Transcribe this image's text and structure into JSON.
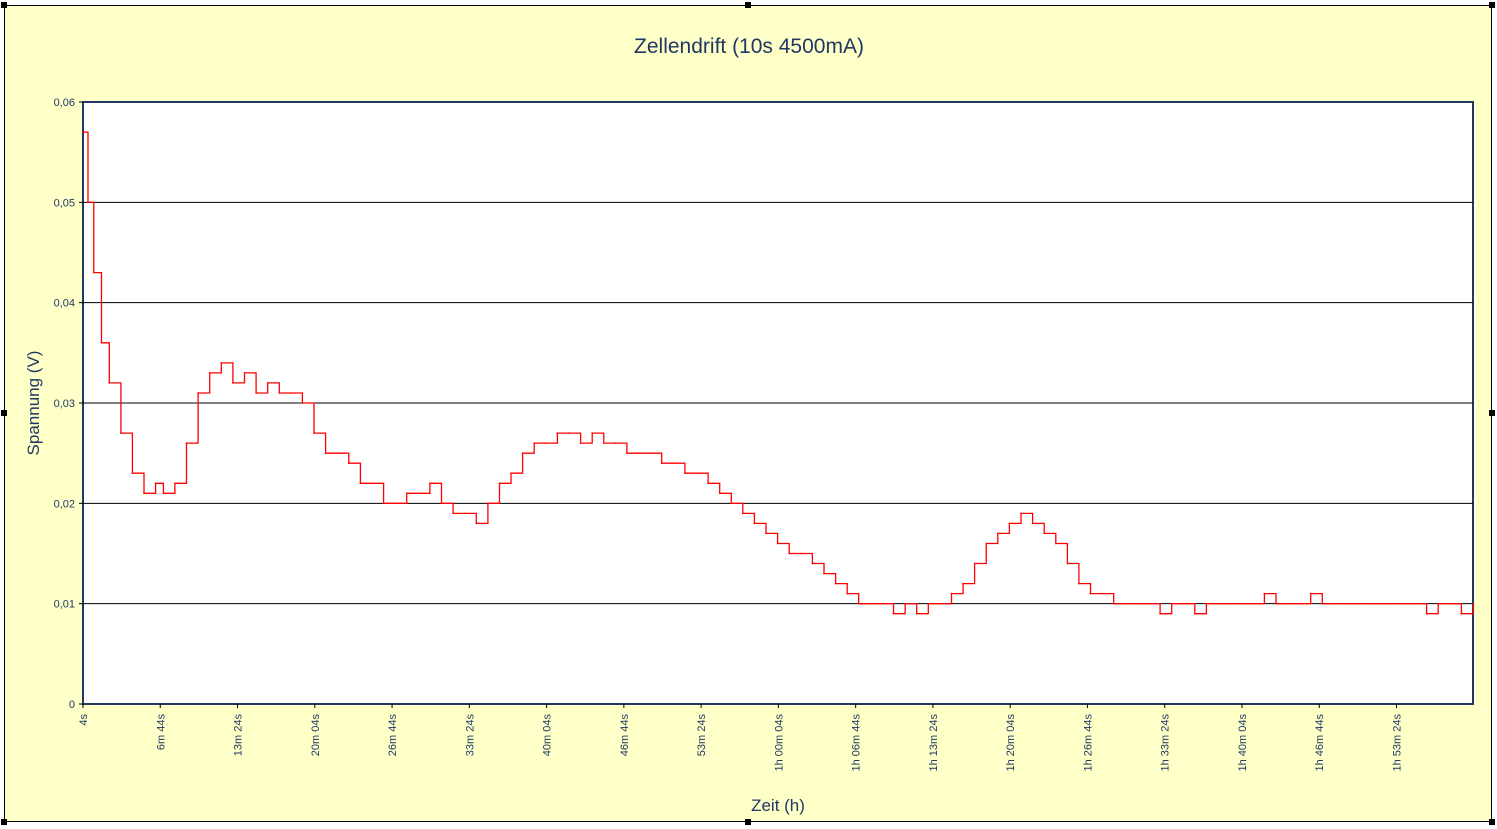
{
  "chart_data": {
    "type": "line",
    "title": "Zellendrift (10s 4500mA)",
    "xlabel": "Zeit (h)",
    "ylabel": "Spannung (V)",
    "ylim": [
      0,
      0.06
    ],
    "y_ticks": [
      0,
      0.01,
      0.02,
      0.03,
      0.04,
      0.05,
      0.06
    ],
    "y_tick_labels": [
      "0",
      "0,01",
      "0,02",
      "0,03",
      "0,04",
      "0,05",
      "0,06"
    ],
    "grid": true,
    "legend": "none",
    "x_unit": "seconds",
    "xlim": [
      4,
      7200
    ],
    "x_ticks": [
      4,
      404,
      804,
      1204,
      1604,
      2004,
      2404,
      2804,
      3204,
      3604,
      4004,
      4404,
      4804,
      5204,
      5604,
      6004,
      6404,
      6804
    ],
    "x_tick_labels": [
      "4s",
      "6m 44s",
      "13m 24s",
      "20m 04s",
      "26m 44s",
      "33m 24s",
      "40m 04s",
      "46m 44s",
      "53m 24s",
      "1h 00m 04s",
      "1h 06m 44s",
      "1h 13m 24s",
      "1h 20m 04s",
      "1h 26m 44s",
      "1h 33m 24s",
      "1h 40m 04s",
      "1h 46m 44s",
      "1h 53m 24s"
    ],
    "series": [
      {
        "color": "#ff0000",
        "x": [
          4,
          30,
          60,
          100,
          140,
          200,
          260,
          320,
          380,
          420,
          480,
          540,
          600,
          660,
          720,
          780,
          840,
          900,
          960,
          1020,
          1080,
          1140,
          1200,
          1260,
          1320,
          1380,
          1440,
          1500,
          1560,
          1620,
          1680,
          1740,
          1800,
          1860,
          1920,
          1980,
          2040,
          2100,
          2160,
          2220,
          2280,
          2340,
          2400,
          2460,
          2520,
          2580,
          2640,
          2700,
          2760,
          2820,
          2880,
          2940,
          3000,
          3060,
          3120,
          3180,
          3240,
          3300,
          3360,
          3420,
          3480,
          3540,
          3600,
          3660,
          3720,
          3780,
          3840,
          3900,
          3960,
          4020,
          4080,
          4140,
          4200,
          4260,
          4320,
          4380,
          4440,
          4500,
          4560,
          4620,
          4680,
          4740,
          4800,
          4860,
          4920,
          4980,
          5040,
          5100,
          5160,
          5220,
          5280,
          5340,
          5400,
          5460,
          5520,
          5580,
          5640,
          5700,
          5760,
          5820,
          5880,
          5940,
          6000,
          6060,
          6120,
          6180,
          6240,
          6300,
          6360,
          6420,
          6480,
          6540,
          6600,
          6660,
          6720,
          6780,
          6840,
          6900,
          6960,
          7020,
          7080,
          7140,
          7200
        ],
        "y": [
          0.057,
          0.05,
          0.043,
          0.036,
          0.032,
          0.027,
          0.023,
          0.021,
          0.022,
          0.021,
          0.022,
          0.026,
          0.031,
          0.033,
          0.034,
          0.032,
          0.033,
          0.031,
          0.032,
          0.031,
          0.031,
          0.03,
          0.027,
          0.025,
          0.025,
          0.024,
          0.022,
          0.022,
          0.02,
          0.02,
          0.021,
          0.021,
          0.022,
          0.02,
          0.019,
          0.019,
          0.018,
          0.02,
          0.022,
          0.023,
          0.025,
          0.026,
          0.026,
          0.027,
          0.027,
          0.026,
          0.027,
          0.026,
          0.026,
          0.025,
          0.025,
          0.025,
          0.024,
          0.024,
          0.023,
          0.023,
          0.022,
          0.021,
          0.02,
          0.019,
          0.018,
          0.017,
          0.016,
          0.015,
          0.015,
          0.014,
          0.013,
          0.012,
          0.011,
          0.01,
          0.01,
          0.01,
          0.009,
          0.01,
          0.009,
          0.01,
          0.01,
          0.011,
          0.012,
          0.014,
          0.016,
          0.017,
          0.018,
          0.019,
          0.018,
          0.017,
          0.016,
          0.014,
          0.012,
          0.011,
          0.011,
          0.01,
          0.01,
          0.01,
          0.01,
          0.009,
          0.01,
          0.01,
          0.009,
          0.01,
          0.01,
          0.01,
          0.01,
          0.01,
          0.011,
          0.01,
          0.01,
          0.01,
          0.011,
          0.01,
          0.01,
          0.01,
          0.01,
          0.01,
          0.01,
          0.01,
          0.01,
          0.01,
          0.009,
          0.01,
          0.01,
          0.009,
          0.01
        ]
      }
    ]
  }
}
